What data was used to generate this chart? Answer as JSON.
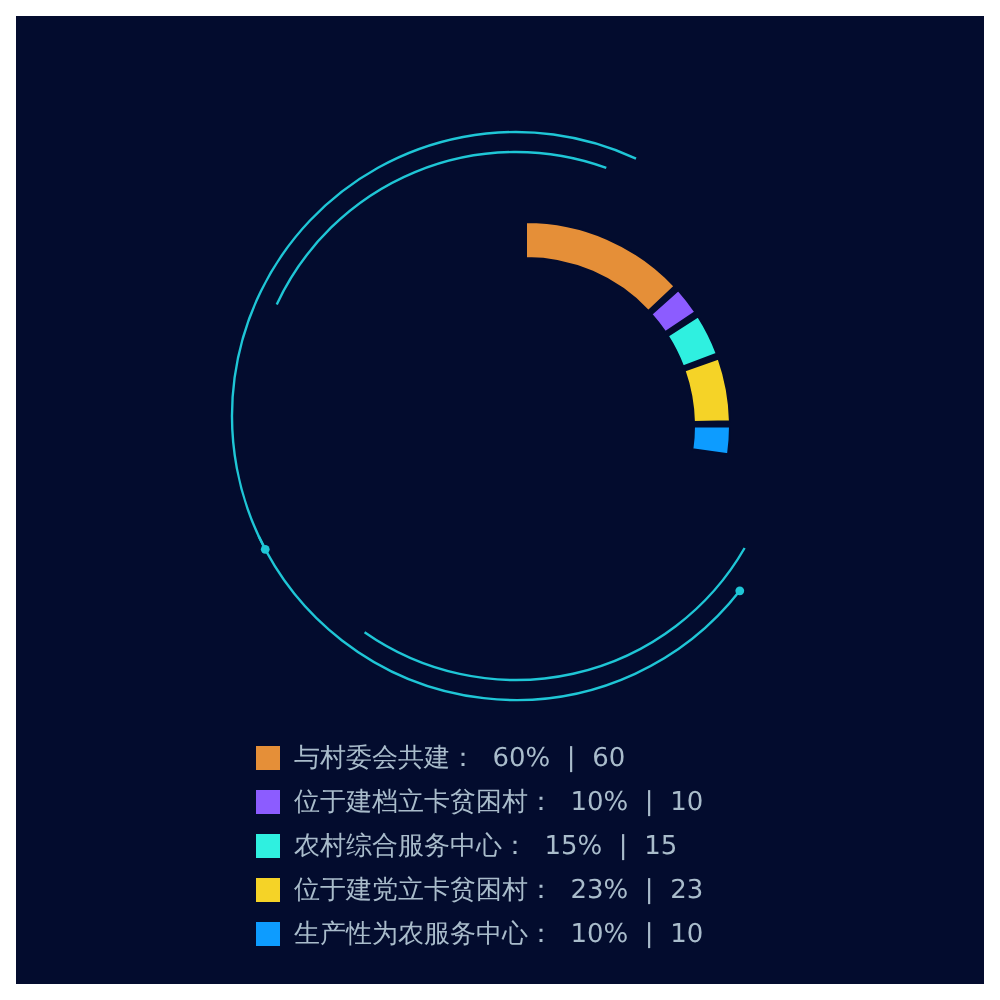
{
  "chart_data": {
    "type": "donut",
    "categories": [
      "与村委会共建",
      "位于建档立卡贫困村",
      "农村综合服务中心",
      "位于建党立卡贫困村",
      "生产性为农服务中心"
    ],
    "values": [
      60,
      10,
      15,
      23,
      10
    ],
    "colors": [
      "#e58f38",
      "#8c5cff",
      "#2ff0e0",
      "#f5d327",
      "#0d9cff"
    ],
    "value_labels": [
      "：  60%  |  60",
      "：  10%  |  10",
      "：  15%  |  15",
      "：  23%  |  23",
      "：  10%  |  10"
    ],
    "legend": "bottom"
  }
}
